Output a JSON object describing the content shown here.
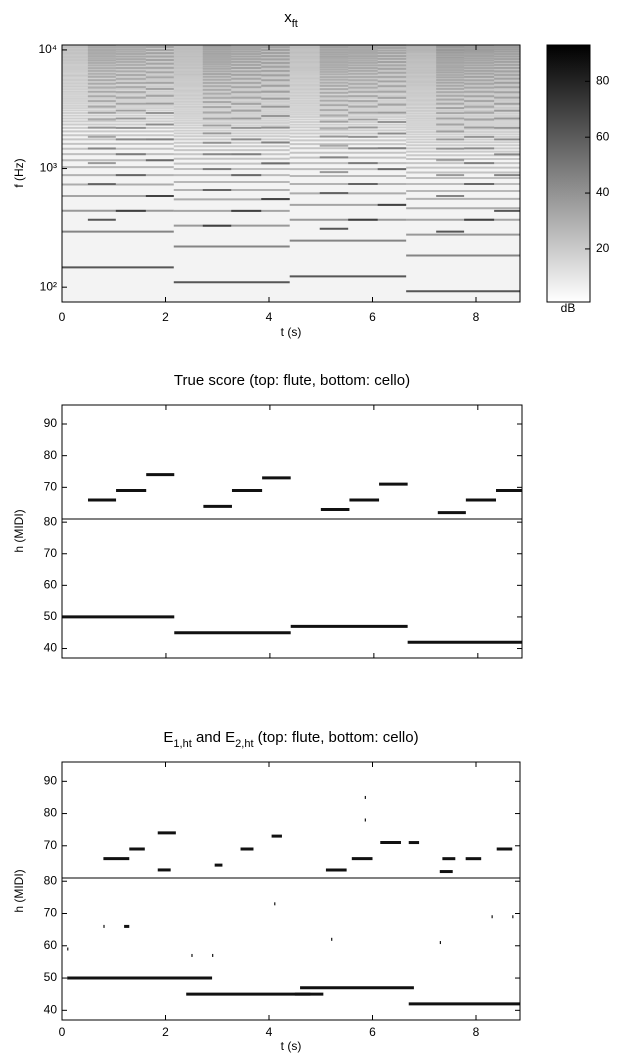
{
  "chart_data": [
    {
      "type": "spectrogram",
      "title": [
        "x",
        "ft"
      ],
      "xlabel": "t (s)",
      "ylabel": "f (Hz)",
      "xlim": [
        0,
        8.85
      ],
      "xticks": [
        0,
        2,
        4,
        6,
        8
      ],
      "ylim": [
        75,
        11000
      ],
      "yscale": "log",
      "yticks": [
        {
          "value": 100,
          "label": "10²"
        },
        {
          "value": 1000,
          "label": "10³"
        },
        {
          "value": 10000,
          "label": "10⁴"
        }
      ],
      "colorbar": {
        "label": "dB",
        "lim": [
          1,
          93
        ],
        "ticks": [
          20,
          40,
          60,
          80
        ]
      }
    },
    {
      "type": "piano-roll",
      "title": [
        "True score (top: flute, bottom: cello)"
      ],
      "ylabel": "h (MIDI)",
      "xlim": [
        0,
        8.85
      ],
      "xticks": [
        0,
        2,
        4,
        6,
        8
      ],
      "top": {
        "ylim": [
          60,
          96
        ],
        "yticks": [
          70,
          80,
          90
        ],
        "notes": [
          {
            "start": 0.5,
            "end": 1.04,
            "pitch": 66
          },
          {
            "start": 1.04,
            "end": 1.62,
            "pitch": 69
          },
          {
            "start": 1.62,
            "end": 2.16,
            "pitch": 74
          },
          {
            "start": 2.72,
            "end": 3.27,
            "pitch": 64
          },
          {
            "start": 3.27,
            "end": 3.85,
            "pitch": 69
          },
          {
            "start": 3.85,
            "end": 4.4,
            "pitch": 73
          },
          {
            "start": 4.98,
            "end": 5.53,
            "pitch": 63
          },
          {
            "start": 5.53,
            "end": 6.1,
            "pitch": 66
          },
          {
            "start": 6.1,
            "end": 6.65,
            "pitch": 71
          },
          {
            "start": 7.23,
            "end": 7.77,
            "pitch": 62
          },
          {
            "start": 7.77,
            "end": 8.35,
            "pitch": 66
          },
          {
            "start": 8.35,
            "end": 8.85,
            "pitch": 69
          }
        ]
      },
      "bottom": {
        "ylim": [
          37,
          81
        ],
        "yticks": [
          40,
          50,
          60,
          70,
          80
        ],
        "notes": [
          {
            "start": 0,
            "end": 2.16,
            "pitch": 50
          },
          {
            "start": 2.16,
            "end": 4.4,
            "pitch": 45
          },
          {
            "start": 4.4,
            "end": 6.65,
            "pitch": 47
          },
          {
            "start": 6.65,
            "end": 8.85,
            "pitch": 42
          }
        ]
      }
    },
    {
      "type": "piano-roll",
      "title": [
        "E",
        "1,ht",
        " and E",
        "2,ht",
        " (top: flute, bottom: cello)"
      ],
      "ylabel": "h (MIDI)",
      "xlabel": "t (s)",
      "xlim": [
        0,
        8.85
      ],
      "xticks": [
        0,
        2,
        4,
        6,
        8
      ],
      "xtick_labels": true,
      "top": {
        "ylim": [
          60,
          96
        ],
        "yticks": [
          70,
          80,
          90
        ],
        "notes": [
          {
            "start": 0.8,
            "end": 1.3,
            "pitch": 66
          },
          {
            "start": 1.3,
            "end": 1.6,
            "pitch": 69
          },
          {
            "start": 1.85,
            "end": 2.2,
            "pitch": 74
          },
          {
            "start": 1.85,
            "end": 2.1,
            "pitch": 62.5
          },
          {
            "start": 2.95,
            "end": 3.1,
            "pitch": 64
          },
          {
            "start": 3.45,
            "end": 3.7,
            "pitch": 69
          },
          {
            "start": 4.05,
            "end": 4.25,
            "pitch": 73
          },
          {
            "start": 5.1,
            "end": 5.5,
            "pitch": 62.5
          },
          {
            "start": 5.6,
            "end": 6.0,
            "pitch": 66
          },
          {
            "start": 6.15,
            "end": 6.55,
            "pitch": 71
          },
          {
            "start": 6.7,
            "end": 6.9,
            "pitch": 71
          },
          {
            "start": 7.3,
            "end": 7.55,
            "pitch": 62
          },
          {
            "start": 7.35,
            "end": 7.6,
            "pitch": 66
          },
          {
            "start": 7.8,
            "end": 8.1,
            "pitch": 66
          },
          {
            "start": 8.4,
            "end": 8.7,
            "pitch": 69
          },
          {
            "start": 5.85,
            "end": 5.87,
            "pitch": 85
          },
          {
            "start": 5.85,
            "end": 5.87,
            "pitch": 78
          }
        ]
      },
      "bottom": {
        "ylim": [
          37,
          81
        ],
        "yticks": [
          40,
          50,
          60,
          70,
          80
        ],
        "notes": [
          {
            "start": 0.1,
            "end": 2.9,
            "pitch": 50
          },
          {
            "start": 2.4,
            "end": 4.8,
            "pitch": 45
          },
          {
            "start": 4.6,
            "end": 6.8,
            "pitch": 47
          },
          {
            "start": 4.5,
            "end": 5.05,
            "pitch": 45
          },
          {
            "start": 6.7,
            "end": 8.85,
            "pitch": 42
          },
          {
            "start": 0.8,
            "end": 0.82,
            "pitch": 66
          },
          {
            "start": 1.2,
            "end": 1.3,
            "pitch": 66
          },
          {
            "start": 4.1,
            "end": 4.12,
            "pitch": 73
          },
          {
            "start": 5.2,
            "end": 5.22,
            "pitch": 62
          },
          {
            "start": 7.3,
            "end": 7.32,
            "pitch": 61
          },
          {
            "start": 8.3,
            "end": 8.32,
            "pitch": 69
          },
          {
            "start": 8.7,
            "end": 8.72,
            "pitch": 69
          },
          {
            "start": 2.5,
            "end": 2.52,
            "pitch": 57
          },
          {
            "start": 2.9,
            "end": 2.92,
            "pitch": 57
          },
          {
            "start": 0.1,
            "end": 0.12,
            "pitch": 59
          }
        ]
      }
    }
  ]
}
